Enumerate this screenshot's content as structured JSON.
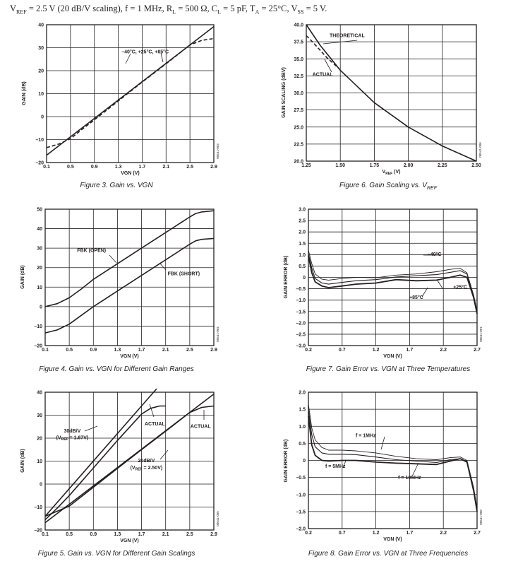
{
  "header": {
    "conditions_parts": [
      "V",
      "REF",
      " = 2.5 V (20 dB/V scaling), f = 1 MHz, R",
      "L",
      " = 500 Ω, C",
      "L",
      " = 5 pF, T",
      "A",
      " = 25°C, V",
      "SS",
      " = 5 V."
    ]
  },
  "captions": {
    "fig3": "Figure 3. Gain vs. VGN",
    "fig4": "Figure 4. Gain vs. VGN for Different Gain Ranges",
    "fig5": "Figure 5. Gain vs. VGN for Different Gain Scalings",
    "fig6": "Figure 6. Gain Scaling vs. VREF",
    "fig7": "Figure 7. Gain Error vs. VGN at Three Temperatures",
    "fig8": "Figure 8. Gain Error vs. VGN at Three Frequencies"
  },
  "colors": {
    "ink": "#231f20",
    "grid": "#231f20",
    "background": "#ffffff"
  },
  "chart_data": [
    {
      "id": "fig3",
      "type": "line",
      "xlabel": "VGN (V)",
      "ylabel": "GAIN (dB)",
      "xlim": [
        0.1,
        2.9
      ],
      "ylim": [
        -20,
        40
      ],
      "xticks": [
        0.1,
        0.5,
        0.9,
        1.3,
        1.7,
        2.1,
        2.5,
        2.9
      ],
      "xtick_labels": [
        "0.1",
        "0.5",
        "0.9",
        "1.3",
        "1.7",
        "2.1",
        "2.5",
        "2.9"
      ],
      "yticks": [
        -20,
        -10,
        0,
        10,
        20,
        30,
        40
      ],
      "ytick_labels": [
        "–20",
        "–10",
        "0",
        "10",
        "20",
        "30",
        "40"
      ],
      "grid": true,
      "code": "00541-003",
      "series": [
        {
          "name": "",
          "style": "solid",
          "x": [
            0.1,
            2.9
          ],
          "y": [
            -16.8,
            39.2
          ]
        },
        {
          "name": "",
          "style": "dashed",
          "x": [
            0.1,
            0.3,
            0.5,
            0.7,
            0.9,
            1.3,
            1.7,
            2.1,
            2.5,
            2.7,
            2.9
          ],
          "y": [
            -13.5,
            -12,
            -9.6,
            -5.4,
            -1.4,
            6.8,
            15,
            23,
            31.2,
            33.2,
            34
          ]
        }
      ],
      "annotations": [
        {
          "text": "–40°C, +25°C, +85°C",
          "x": 1.75,
          "y": 27.5
        }
      ]
    },
    {
      "id": "fig4",
      "type": "line",
      "xlabel": "VGN (V)",
      "ylabel": "GAIN (dB)",
      "xlim": [
        0.1,
        2.9
      ],
      "ylim": [
        -20,
        50
      ],
      "xticks": [
        0.1,
        0.5,
        0.9,
        1.3,
        1.7,
        2.1,
        2.5,
        2.9
      ],
      "xtick_labels": [
        "0.1",
        "0.5",
        "0.9",
        "1.3",
        "1.7",
        "2.1",
        "2.5",
        "2.9"
      ],
      "yticks": [
        -20,
        -10,
        0,
        10,
        20,
        30,
        40,
        50
      ],
      "ytick_labels": [
        "–20",
        "–10",
        "0",
        "10",
        "20",
        "30",
        "40",
        "50"
      ],
      "grid": true,
      "code": "00541-004",
      "series": [
        {
          "name": "FBK (OPEN)",
          "style": "solid",
          "x": [
            0.1,
            0.3,
            0.5,
            0.7,
            0.9,
            1.3,
            1.7,
            2.1,
            2.5,
            2.6,
            2.7,
            2.9
          ],
          "y": [
            0,
            1.5,
            4.5,
            9,
            14,
            22,
            30,
            38,
            46,
            47.8,
            48.6,
            49.2
          ]
        },
        {
          "name": "FBK (SHORT)",
          "style": "solid",
          "x": [
            0.1,
            0.3,
            0.5,
            0.7,
            0.9,
            1.3,
            1.7,
            2.1,
            2.5,
            2.6,
            2.7,
            2.9
          ],
          "y": [
            -13.5,
            -12,
            -9,
            -4.5,
            0,
            8,
            16,
            24,
            32,
            33.8,
            34.5,
            35
          ]
        }
      ],
      "annotations": [
        {
          "text": "FBK (OPEN)",
          "x": 0.87,
          "y": 28
        },
        {
          "text": "FBK (SHORT)",
          "x": 2.4,
          "y": 16
        }
      ]
    },
    {
      "id": "fig5",
      "type": "line",
      "xlabel": "VGN (V)",
      "ylabel": "GAIN (dB)",
      "xlim": [
        0.1,
        2.9
      ],
      "ylim": [
        -20,
        40
      ],
      "xticks": [
        0.1,
        0.5,
        0.9,
        1.3,
        1.7,
        2.1,
        2.5,
        2.9
      ],
      "xtick_labels": [
        "0.1",
        "0.5",
        "0.9",
        "1.3",
        "1.7",
        "2.1",
        "2.5",
        "2.9"
      ],
      "yticks": [
        -20,
        -10,
        0,
        10,
        20,
        30,
        40
      ],
      "ytick_labels": [
        "–20",
        "–10",
        "0",
        "10",
        "20",
        "30",
        "40"
      ],
      "grid": true,
      "code": "00541-005",
      "series": [
        {
          "name": "30dB/V (VREF = 1.67V)",
          "style": "solid",
          "x": [
            0.1,
            1.95
          ],
          "y": [
            -14,
            41.5
          ]
        },
        {
          "name": "30dB/V ACTUAL",
          "style": "solid",
          "x": [
            0.1,
            0.3,
            0.5,
            0.7,
            1.3,
            1.7,
            1.85,
            2.0,
            2.1
          ],
          "y": [
            -15.5,
            -10.5,
            -5,
            1,
            19,
            30.5,
            33,
            34,
            34
          ]
        },
        {
          "name": "20dB/V (VREF = 2.50V)",
          "style": "solid",
          "x": [
            0.1,
            2.9
          ],
          "y": [
            -16.8,
            39.2
          ]
        },
        {
          "name": "20dB/V ACTUAL",
          "style": "solid",
          "x": [
            0.1,
            0.5,
            0.9,
            1.3,
            1.7,
            2.1,
            2.5,
            2.7,
            2.9
          ],
          "y": [
            -14,
            -9.6,
            -1.4,
            6.8,
            15,
            23,
            31.2,
            33.4,
            34
          ]
        }
      ],
      "annotations": [
        {
          "text": "ACTUAL",
          "x": 1.92,
          "y": 25.5
        },
        {
          "text": "ACTUAL",
          "x": 2.68,
          "y": 24.5
        },
        {
          "text": "30dB/V",
          "x": 0.55,
          "y": 22.5
        },
        {
          "text": "(VREF = 1.67V)",
          "x": 0.55,
          "y": 19.5
        },
        {
          "text": "20dB/V",
          "x": 1.78,
          "y": 9.5
        },
        {
          "text": "(VREF = 2.50V)",
          "x": 1.78,
          "y": 6.5
        }
      ]
    },
    {
      "id": "fig6",
      "type": "line",
      "xlabel": "VREF (V)",
      "ylabel": "GAIN SCALING (dBV)",
      "xlim": [
        1.25,
        2.5
      ],
      "ylim": [
        20,
        40
      ],
      "xticks": [
        1.25,
        1.5,
        1.75,
        2.0,
        2.25,
        2.5
      ],
      "xtick_labels": [
        "1.25",
        "1.50",
        "1.75",
        "2.00",
        "2.25",
        "2.50"
      ],
      "yticks": [
        20,
        22.5,
        25,
        27.5,
        30,
        32.5,
        35,
        37.5,
        40
      ],
      "ytick_labels": [
        "20.0",
        "22.5",
        "25.0",
        "27.5",
        "30.0",
        "32.5",
        "35.0",
        "37.5",
        "40.0"
      ],
      "grid": true,
      "code": "00541-006",
      "series": [
        {
          "name": "THEORETICAL",
          "style": "solid",
          "x": [
            1.25,
            1.35,
            1.5,
            1.75,
            2.0,
            2.25,
            2.5
          ],
          "y": [
            40,
            37.04,
            33.33,
            28.57,
            25,
            22.22,
            20
          ]
        },
        {
          "name": "ACTUAL",
          "style": "dashed",
          "x": [
            1.25,
            1.3,
            1.35,
            1.4,
            1.5
          ],
          "y": [
            38.4,
            37.4,
            36.3,
            35.2,
            33.4
          ]
        }
      ],
      "annotations": [
        {
          "text": "THEORETICAL",
          "x": 1.55,
          "y": 38.2
        },
        {
          "text": "ACTUAL",
          "x": 1.37,
          "y": 32.5
        }
      ]
    },
    {
      "id": "fig7",
      "type": "line",
      "xlabel": "VGN (V)",
      "ylabel": "GAIN ERROR (dB)",
      "xlim": [
        0.2,
        2.7
      ],
      "ylim": [
        -3,
        3
      ],
      "xticks": [
        0.2,
        0.7,
        1.2,
        1.7,
        2.2,
        2.7
      ],
      "xtick_labels": [
        "0.2",
        "0.7",
        "1.2",
        "1.7",
        "2.2",
        "2.7"
      ],
      "yticks": [
        -3,
        -2.5,
        -2,
        -1.5,
        -1,
        -0.5,
        0,
        0.5,
        1,
        1.5,
        2,
        2.5,
        3
      ],
      "ytick_labels": [
        "–3.0",
        "–2.5",
        "–2.0",
        "–1.5",
        "–1.0",
        "–0.5",
        "0",
        "0.5",
        "1.0",
        "1.5",
        "2.0",
        "2.5",
        "3.0"
      ],
      "grid": true,
      "code": "00541-007",
      "series": [
        {
          "name": "–40°C",
          "style": "solid",
          "x": [
            0.2,
            0.25,
            0.3,
            0.4,
            0.5,
            0.7,
            0.9,
            1.2,
            1.5,
            1.8,
            2.1,
            2.3,
            2.45,
            2.55,
            2.65,
            2.7
          ],
          "y": [
            1.2,
            0.6,
            0.15,
            -0.08,
            -0.12,
            -0.05,
            0,
            -0.02,
            0.1,
            0.15,
            0.25,
            0.35,
            0.4,
            0.2,
            -0.8,
            -1.45
          ]
        },
        {
          "name": "+25°C",
          "style": "solid",
          "x": [
            0.2,
            0.25,
            0.3,
            0.4,
            0.5,
            0.7,
            0.9,
            1.2,
            1.5,
            1.8,
            2.1,
            2.3,
            2.45,
            2.55,
            2.65,
            2.7
          ],
          "y": [
            1.05,
            0.4,
            -0.05,
            -0.25,
            -0.3,
            -0.22,
            -0.15,
            -0.1,
            0.02,
            0.07,
            0.12,
            0.22,
            0.3,
            0.15,
            -0.8,
            -1.5
          ]
        },
        {
          "name": "+85°C",
          "style": "solid",
          "x": [
            0.2,
            0.25,
            0.3,
            0.4,
            0.5,
            0.7,
            0.9,
            1.2,
            1.5,
            1.8,
            2.1,
            2.3,
            2.45,
            2.55,
            2.65,
            2.7
          ],
          "y": [
            0.95,
            0.2,
            -0.2,
            -0.38,
            -0.45,
            -0.38,
            -0.3,
            -0.25,
            -0.1,
            -0.15,
            -0.12,
            0.0,
            0.1,
            0.0,
            -0.9,
            -1.6
          ]
        }
      ],
      "annotations": [
        {
          "text": "–40°C",
          "x": 2.07,
          "y": 0.95
        },
        {
          "text": "+25°C",
          "x": 2.45,
          "y": -0.5
        },
        {
          "text": "+85°C",
          "x": 1.8,
          "y": -0.95
        }
      ]
    },
    {
      "id": "fig8",
      "type": "line",
      "xlabel": "VGN (V)",
      "ylabel": "GAIN ERROR (dB)",
      "xlim": [
        0.2,
        2.7
      ],
      "ylim": [
        -2,
        2
      ],
      "xticks": [
        0.2,
        0.7,
        1.2,
        1.7,
        2.2,
        2.7
      ],
      "xtick_labels": [
        "0.2",
        "0.7",
        "1.2",
        "1.7",
        "2.2",
        "2.7"
      ],
      "yticks": [
        -2,
        -1.5,
        -1,
        -0.5,
        0,
        0.5,
        1,
        1.5,
        2
      ],
      "ytick_labels": [
        "–2.0",
        "–1.5",
        "–1.0",
        "–0.5",
        "0",
        "0.5",
        "1.0",
        "1.5",
        "2.0"
      ],
      "grid": true,
      "code": "00541-008",
      "series": [
        {
          "name": "f = 1MHz",
          "style": "solid",
          "x": [
            0.2,
            0.25,
            0.3,
            0.4,
            0.5,
            0.7,
            0.9,
            1.2,
            1.5,
            1.8,
            2.1,
            2.3,
            2.45,
            2.55,
            2.65,
            2.7
          ],
          "y": [
            1.65,
            0.95,
            0.6,
            0.38,
            0.3,
            0.3,
            0.28,
            0.22,
            0.12,
            0.05,
            0.02,
            0.08,
            0.1,
            0.0,
            -0.8,
            -1.4
          ]
        },
        {
          "name": "f = 5MHz",
          "style": "solid",
          "x": [
            0.2,
            0.25,
            0.3,
            0.4,
            0.5,
            0.7,
            0.9,
            1.2,
            1.5,
            1.8,
            2.1,
            2.3,
            2.45,
            2.55,
            2.65,
            2.7
          ],
          "y": [
            1.5,
            0.75,
            0.4,
            0.22,
            0.18,
            0.18,
            0.17,
            0.1,
            0.02,
            -0.02,
            -0.06,
            0.02,
            0.05,
            -0.03,
            -0.85,
            -1.45
          ]
        },
        {
          "name": "f = 10MHz",
          "style": "solid",
          "x": [
            0.2,
            0.25,
            0.3,
            0.4,
            0.5,
            0.7,
            0.9,
            1.2,
            1.5,
            1.8,
            2.1,
            2.3,
            2.45,
            2.55,
            2.65,
            2.7
          ],
          "y": [
            1.3,
            0.45,
            0.15,
            0.0,
            -0.02,
            0.0,
            0.0,
            -0.05,
            -0.08,
            -0.1,
            -0.12,
            -0.02,
            0.05,
            -0.05,
            -0.9,
            -1.5
          ]
        }
      ],
      "annotations": [
        {
          "text": "f = 1MHz",
          "x": 1.05,
          "y": 0.68
        },
        {
          "text": "f = 5MHz",
          "x": 0.6,
          "y": -0.22
        },
        {
          "text": "f = 10MHz",
          "x": 1.7,
          "y": -0.55
        }
      ]
    }
  ]
}
